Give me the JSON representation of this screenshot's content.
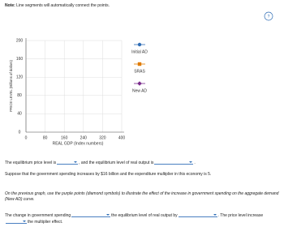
{
  "note": {
    "label": "Note:",
    "text": "Line segments will automatically connect the points."
  },
  "help": "?",
  "graph": {
    "y_axis_label": "PRICE LEVEL (Billions of dollars)",
    "x_axis_label": "REAL GDP (Index numbers)",
    "ylim": [
      0,
      200
    ],
    "yticks": [
      0,
      40,
      80,
      120,
      160,
      200
    ],
    "xlim": [
      0,
      400
    ],
    "xticks": [
      0,
      80,
      160,
      240,
      320,
      400
    ],
    "legend": [
      {
        "name": "Initial AD",
        "color": "#2f6db5",
        "marker": "circle"
      },
      {
        "name": "SRAS",
        "color": "#e07b00",
        "marker": "square"
      },
      {
        "name": "New AD",
        "color": "#7a2c8c",
        "marker": "diamond"
      }
    ]
  },
  "questions": {
    "q1": [
      "The equilibrium price level is",
      ", and the equilibrium level of real output is",
      "."
    ],
    "q2": "Suppose that the government spending increases by $16 billion and the expenditure multiplier in this economy is 5.",
    "q3": "On the previous graph, use the purple points (diamond symbols) to illustrate the effect of the increase in government spending on the aggregate demand (New AD) curve.",
    "q4": [
      "The change in government spending",
      "the equilibrium level of real output by",
      ". The price level increase",
      "the multiplier effect."
    ]
  }
}
